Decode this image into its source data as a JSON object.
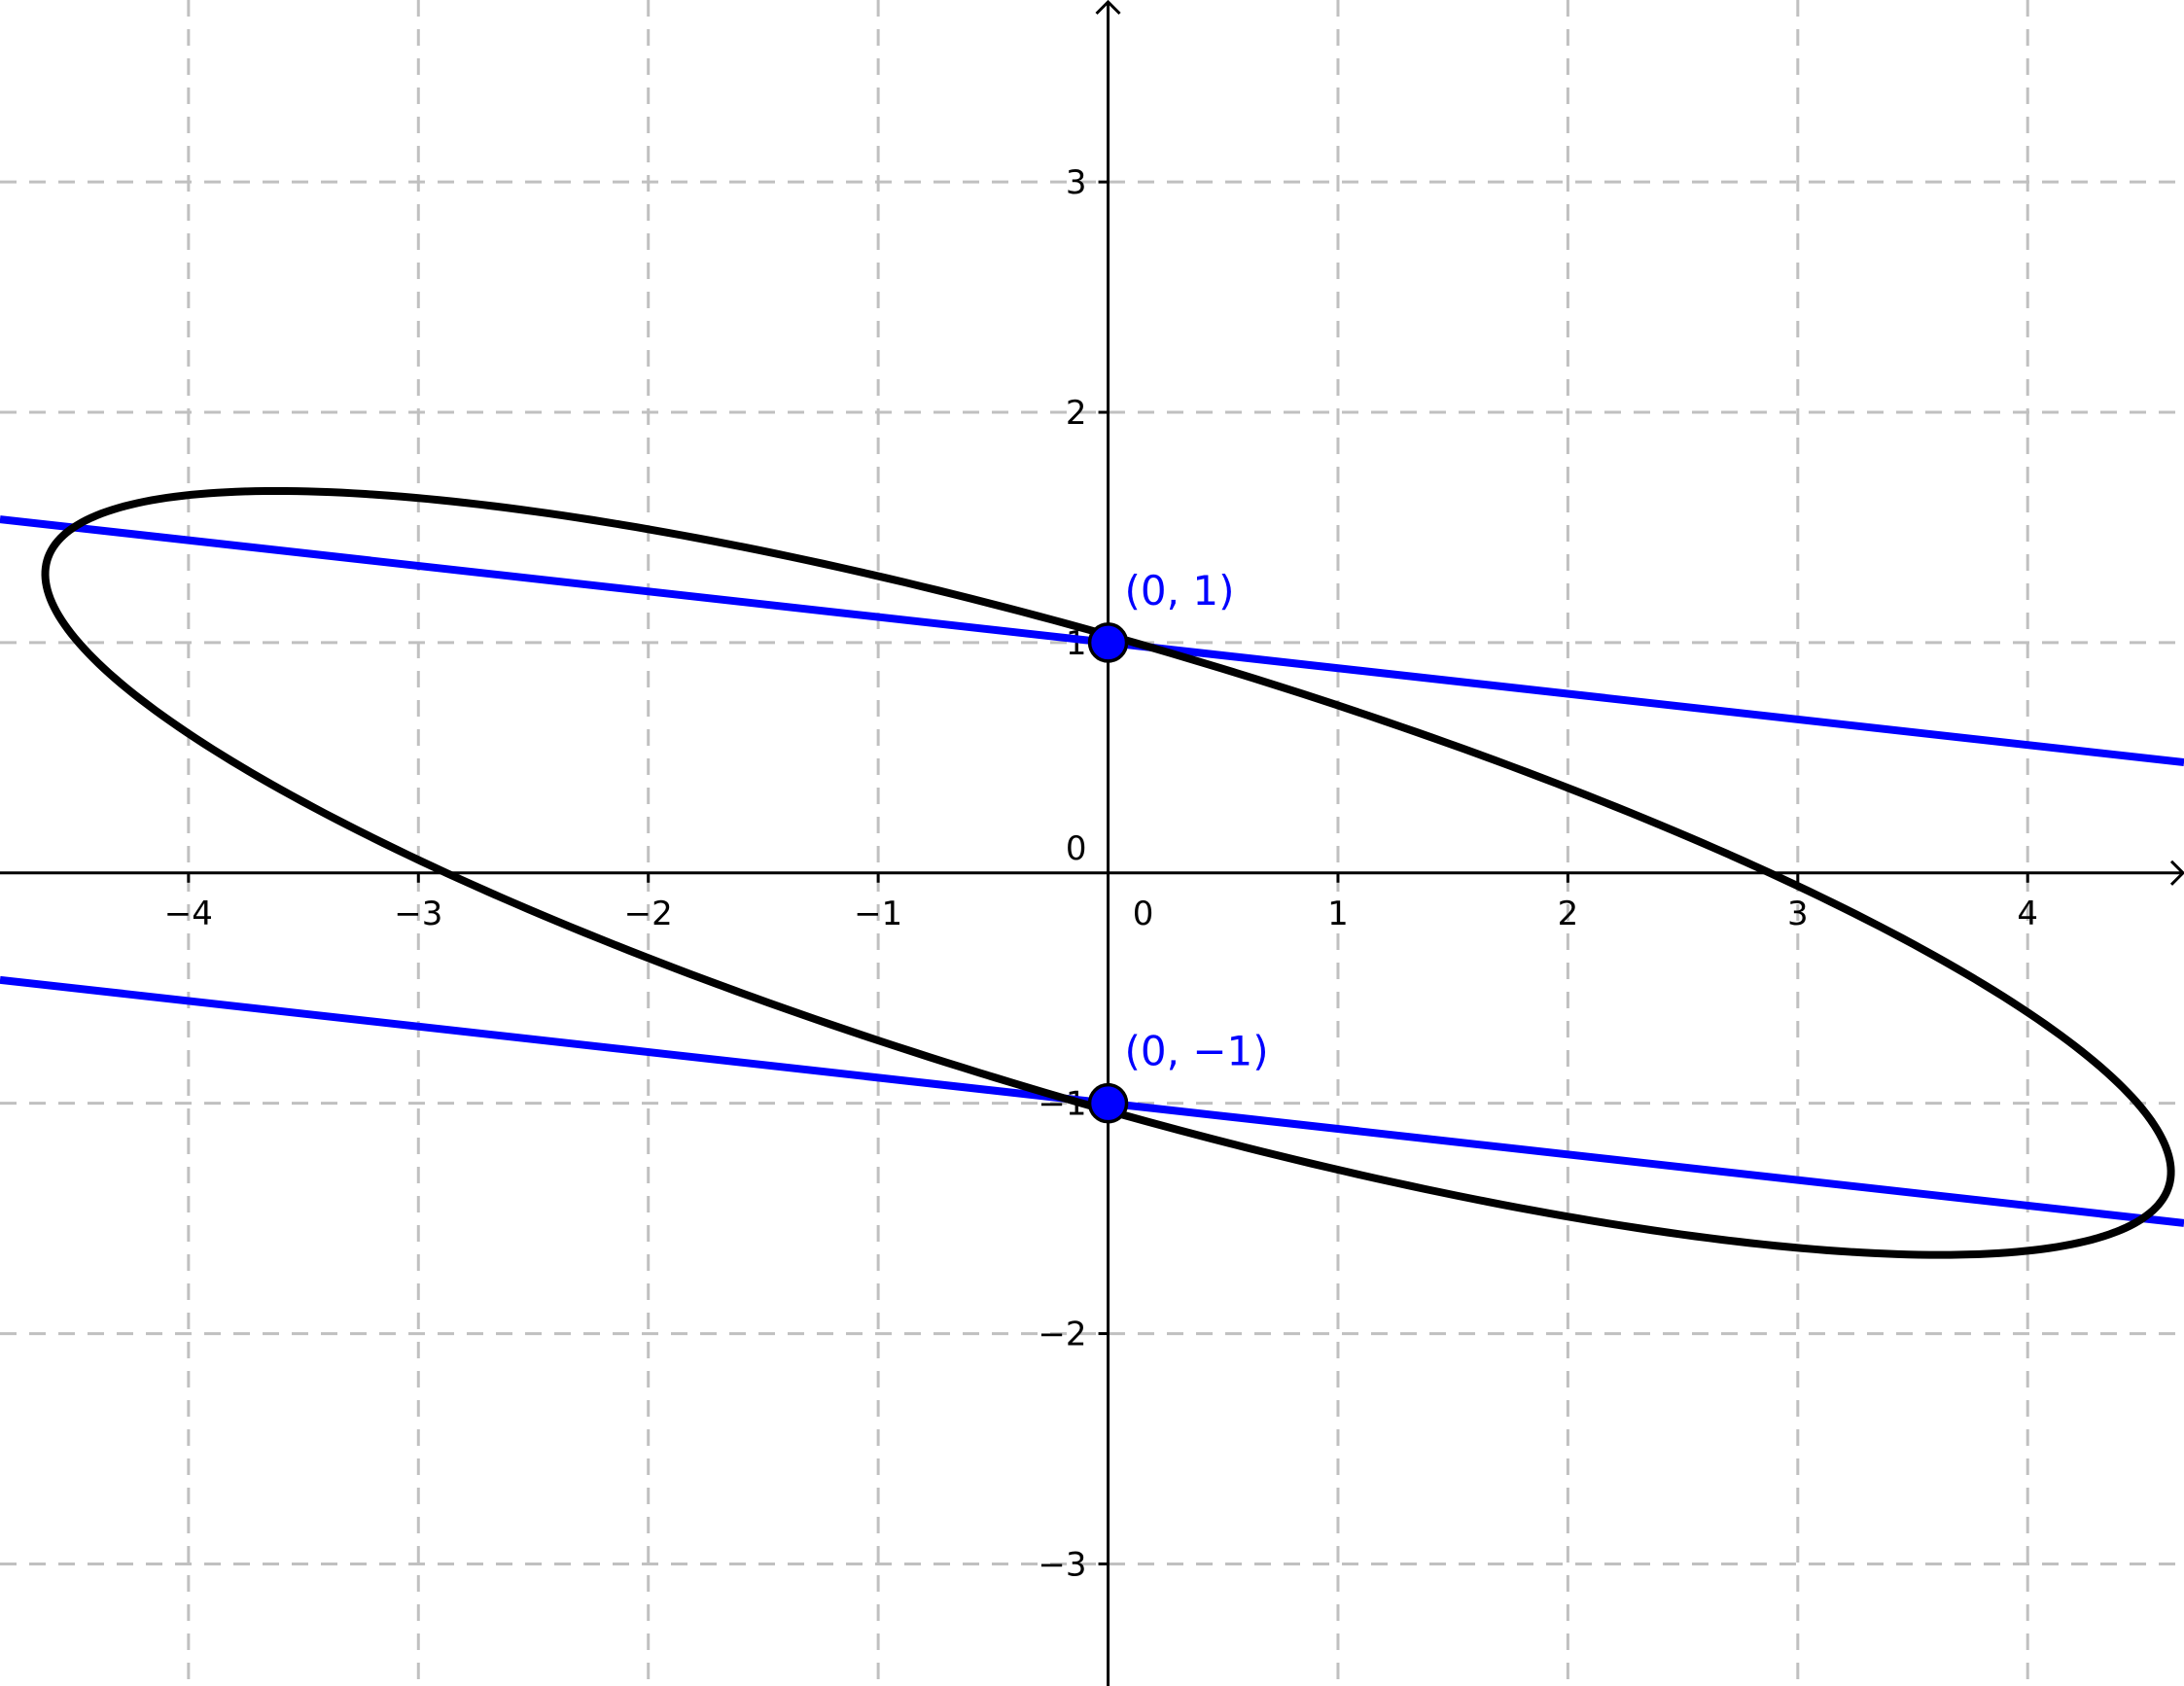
{
  "chart_data": {
    "type": "function-plot",
    "xlim": [
      -4.82,
      4.68
    ],
    "ylim": [
      -3.53,
      3.79
    ],
    "grid": true,
    "grid_step": 1,
    "x_ticks": [
      {
        "value": -4,
        "label": "−4"
      },
      {
        "value": -3,
        "label": "−3"
      },
      {
        "value": -2,
        "label": "−2"
      },
      {
        "value": -1,
        "label": "−1"
      },
      {
        "value": 1,
        "label": "1"
      },
      {
        "value": 2,
        "label": "2"
      },
      {
        "value": 3,
        "label": "3"
      },
      {
        "value": 4,
        "label": "4"
      }
    ],
    "y_ticks": [
      {
        "value": 3,
        "label": "3"
      },
      {
        "value": 2,
        "label": "2"
      },
      {
        "value": 1,
        "label": "1"
      },
      {
        "value": -1,
        "label": "−1"
      },
      {
        "value": -2,
        "label": "−2"
      },
      {
        "value": -3,
        "label": "−3"
      }
    ],
    "origin_labels": [
      "0",
      "0"
    ],
    "curve": {
      "equation": "x^2 + 2xy + 9y^2 = 9",
      "color": "#000000"
    },
    "tangent_lines": [
      {
        "equation": "y = -x/9 + 1",
        "slope": -0.1111,
        "intercept": 1,
        "color": "#0000ff"
      },
      {
        "equation": "y = -x/9 - 1",
        "slope": -0.1111,
        "intercept": -1,
        "color": "#0000ff"
      }
    ],
    "points": [
      {
        "x": 0,
        "y": 1,
        "label": "(0, 1)",
        "color": "#0000ff"
      },
      {
        "x": 0,
        "y": -1,
        "label": "(0, −1)",
        "color": "#0000ff"
      }
    ]
  }
}
